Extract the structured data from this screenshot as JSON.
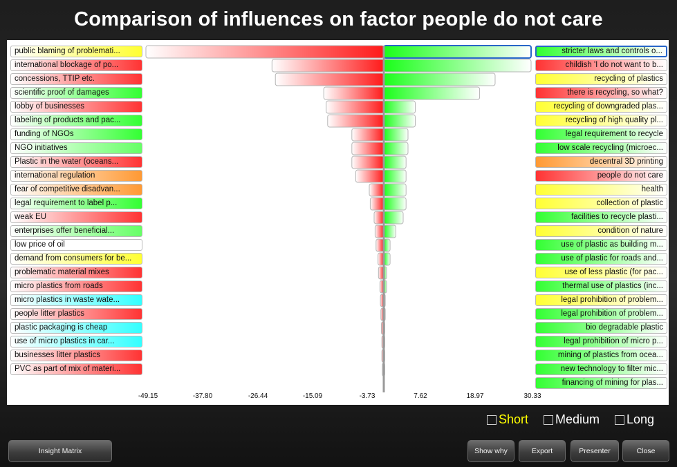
{
  "title": "Comparison of influences on factor people do not care",
  "chart_data": {
    "type": "bar",
    "orientation": "horizontal-tornado",
    "x_ticks": [
      "-49.15",
      "-37.80",
      "-26.44",
      "-15.09",
      "-3.73",
      "7.62",
      "18.97",
      "30.33"
    ],
    "xlim": [
      -49.15,
      30.33
    ],
    "left_series": [
      {
        "label": "public blaming of problemati...",
        "color": "#ffff33",
        "value": -50.3
      },
      {
        "label": "international blockage of po...",
        "color": "#ff3333",
        "value": -23.1
      },
      {
        "label": "concessions, TTIP etc.",
        "color": "#ff3333",
        "value": -22.4
      },
      {
        "label": "scientific proof of damages",
        "color": "#33ff33",
        "value": -12.4
      },
      {
        "label": "lobby of businesses",
        "color": "#ff3333",
        "value": -11.9
      },
      {
        "label": "labeling of products and pac...",
        "color": "#33ff33",
        "value": -11.6
      },
      {
        "label": "funding of NGOs",
        "color": "#33ff33",
        "value": -6.6
      },
      {
        "label": "NGO initiatives",
        "color": "#66ff66",
        "value": -6.6
      },
      {
        "label": "Plastic in the water (oceans...",
        "color": "#ff3333",
        "value": -6.6
      },
      {
        "label": "international regulation",
        "color": "#ff9933",
        "value": -5.8
      },
      {
        "label": "fear of competitive disadvan...",
        "color": "#ff9933",
        "value": -3.0
      },
      {
        "label": "legal requirement to label p...",
        "color": "#33ff33",
        "value": -2.8
      },
      {
        "label": "weak EU",
        "color": "#ff3333",
        "value": -2.0
      },
      {
        "label": "enterprises offer beneficial...",
        "color": "#66ff66",
        "value": -1.8
      },
      {
        "label": "low price of oil",
        "color": "#ffffff",
        "value": -1.6
      },
      {
        "label": "demand from consumers for be...",
        "color": "#ffff33",
        "value": -1.2
      },
      {
        "label": "problematic material mixes",
        "color": "#ff3333",
        "value": -1.1
      },
      {
        "label": "micro plastics from roads",
        "color": "#ff3333",
        "value": -0.8
      },
      {
        "label": "micro plastics in waste wate...",
        "color": "#33ffff",
        "value": -0.7
      },
      {
        "label": "people litter plastics",
        "color": "#ff3333",
        "value": -0.6
      },
      {
        "label": "plastic packaging is cheap",
        "color": "#33ffff",
        "value": -0.5
      },
      {
        "label": "use of micro plastics in car...",
        "color": "#33ffff",
        "value": -0.4
      },
      {
        "label": "businesses litter plastics",
        "color": "#ff3333",
        "value": -0.4
      },
      {
        "label": "PVC as part of mix of materi...",
        "color": "#ff3333",
        "value": -0.3
      }
    ],
    "right_series": [
      {
        "label": "stricter laws and controls o...",
        "color": "#33ff33",
        "value": 30.8
      },
      {
        "label": "childish 'I do not want to b...",
        "color": "#ff3333",
        "value": 30.6
      },
      {
        "label": "recycling of plastics",
        "color": "#ffff33",
        "value": 23.0
      },
      {
        "label": "there is recycling, so what?",
        "color": "#ff3333",
        "value": 19.8
      },
      {
        "label": "recycling of downgraded plas...",
        "color": "#ffff33",
        "value": 6.5
      },
      {
        "label": "recycling of high quality pl...",
        "color": "#ffff33",
        "value": 6.5
      },
      {
        "label": "legal requirement to recycle",
        "color": "#33ff33",
        "value": 5.0
      },
      {
        "label": "low scale recycling (microec...",
        "color": "#33ff33",
        "value": 5.0
      },
      {
        "label": "decentral 3D printing",
        "color": "#ff9933",
        "value": 4.6
      },
      {
        "label": "people do not care",
        "color": "#ff3333",
        "value": 4.6
      },
      {
        "label": "health",
        "color": "#ffff33",
        "value": 4.6
      },
      {
        "label": "collection of plastic",
        "color": "#ffff33",
        "value": 4.6
      },
      {
        "label": "facilities to recycle plasti...",
        "color": "#33ff33",
        "value": 4.0
      },
      {
        "label": "condition of nature",
        "color": "#ffff33",
        "value": 2.5
      },
      {
        "label": "use of plastic as building m...",
        "color": "#33ff33",
        "value": 1.3
      },
      {
        "label": "use of plastic for roads and...",
        "color": "#33ff33",
        "value": 1.3
      },
      {
        "label": "use of less plastic (for pac...",
        "color": "#ffff33",
        "value": 0.6
      },
      {
        "label": "thermal use of plastics (inc...",
        "color": "#33ff33",
        "value": 0.6
      },
      {
        "label": "legal prohibition of problem...",
        "color": "#ffff33",
        "value": 0.3
      },
      {
        "label": "legal prohibition of problem...",
        "color": "#33ff33",
        "value": 0.3
      },
      {
        "label": "bio degradable plastic",
        "color": "#33ff33",
        "value": 0.2
      },
      {
        "label": "legal prohibition of micro p...",
        "color": "#33ff33",
        "value": 0.2
      },
      {
        "label": "mining of plastics from ocea...",
        "color": "#33ff33",
        "value": 0.2
      },
      {
        "label": "new technology to filter mic...",
        "color": "#33ff33",
        "value": 0.2
      },
      {
        "label": "financing of mining for plas...",
        "color": "#33ff33",
        "value": 0.1
      }
    ],
    "selected_index": 0
  },
  "legend": {
    "short": "Short",
    "medium": "Medium",
    "long": "Long",
    "short_color": "#ffff00"
  },
  "buttons": {
    "insight_matrix": "Insight Matrix",
    "show_why": "Show why",
    "export": "Export",
    "presenter": "Presenter",
    "close": "Close"
  }
}
